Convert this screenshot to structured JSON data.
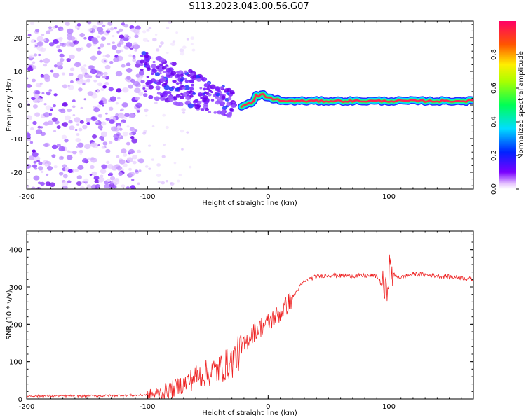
{
  "title": "S113.2023.043.00.56.G07",
  "colors": {
    "snr_line": "#ee2222",
    "axis": "#000000",
    "background": "#ffffff"
  },
  "chart_data": [
    {
      "type": "heatmap",
      "xlabel": "Height of straight line (km)",
      "ylabel": "Frequency (Hz)",
      "xlim": [
        -200,
        170
      ],
      "ylim": [
        -25,
        25
      ],
      "x_ticks": [
        -200,
        -100,
        0,
        100
      ],
      "y_ticks": [
        -20,
        -10,
        0,
        10,
        20
      ],
      "colorbar": {
        "label": "Normalized spectral amplitude",
        "range": [
          0,
          1
        ],
        "ticks": [
          "0.0",
          "0.2",
          "0.4",
          "0.6",
          "0.8"
        ],
        "colormap": "gist_rainbow (white at 0)"
      },
      "features": [
        {
          "region": "x -200 to -105 km",
          "description": "scattered low-amplitude noise across -25 to 25 Hz"
        },
        {
          "region": "x -105 to -30 km",
          "description": "stronger noise, converging from ~10 Hz toward 0 Hz"
        },
        {
          "region": "x -20 to 170 km",
          "description": "coherent band near 1-2 Hz with peak amplitude ~1.0"
        }
      ]
    },
    {
      "type": "line",
      "xlabel": "Height of straight line (km)",
      "ylabel": "SNR (10 * v/v)",
      "xlim": [
        -200,
        170
      ],
      "ylim": [
        0,
        450
      ],
      "x_ticks": [
        -200,
        -100,
        0,
        100
      ],
      "y_ticks": [
        0,
        100,
        200,
        300,
        400
      ],
      "series": [
        {
          "x": [
            -200,
            -150,
            -110,
            -95,
            -80,
            -70,
            -60,
            -50,
            -40,
            -30,
            -25,
            -20,
            -15,
            -10,
            -5,
            0,
            10,
            20,
            25,
            30,
            40,
            50,
            60,
            80,
            90,
            95,
            98,
            100,
            105,
            110,
            120,
            140,
            160,
            170
          ],
          "y": [
            8,
            8,
            10,
            12,
            25,
            40,
            60,
            70,
            80,
            100,
            120,
            140,
            170,
            185,
            195,
            205,
            230,
            270,
            295,
            315,
            328,
            332,
            330,
            330,
            330,
            300,
            280,
            350,
            330,
            325,
            335,
            330,
            325,
            320
          ]
        }
      ]
    }
  ]
}
